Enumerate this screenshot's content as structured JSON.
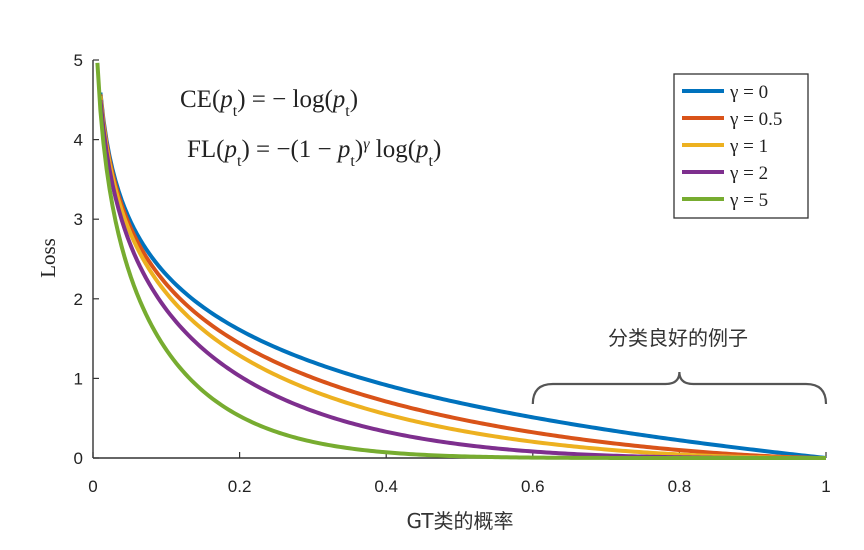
{
  "chart_data": {
    "type": "line",
    "xlabel": "GT类的概率",
    "ylabel": "Loss",
    "xlim": [
      0,
      1
    ],
    "ylim": [
      0,
      5
    ],
    "x_ticks": [
      "0",
      "0.2",
      "0.4",
      "0.6",
      "0.8",
      "1"
    ],
    "y_ticks": [
      "0",
      "1",
      "2",
      "3",
      "4",
      "5"
    ],
    "grid": false,
    "legend_position": "top-right",
    "formulas": {
      "ce": "CE(pt) = − log(pt)",
      "fl": "FL(pt) = −(1 − pt)γ log(pt)"
    },
    "annotation": {
      "text": "分类良好的例子",
      "x_range": [
        0.6,
        1.0
      ]
    },
    "series": [
      {
        "name": "γ = 0",
        "gamma": 0,
        "color": "#0072BD",
        "x": [
          0.01,
          0.05,
          0.1,
          0.2,
          0.3,
          0.4,
          0.5,
          0.6,
          0.7,
          0.8,
          0.9,
          1.0
        ],
        "values": [
          4.61,
          3.0,
          2.3,
          1.61,
          1.2,
          0.92,
          0.69,
          0.51,
          0.36,
          0.22,
          0.11,
          0.0
        ]
      },
      {
        "name": "γ = 0.5",
        "gamma": 0.5,
        "color": "#D95319",
        "x": [
          0.01,
          0.05,
          0.1,
          0.2,
          0.3,
          0.4,
          0.5,
          0.6,
          0.7,
          0.8,
          0.9,
          1.0
        ],
        "values": [
          4.58,
          2.92,
          2.18,
          1.44,
          1.01,
          0.71,
          0.49,
          0.32,
          0.2,
          0.1,
          0.03,
          0.0
        ]
      },
      {
        "name": "γ = 1",
        "gamma": 1,
        "color": "#EDB120",
        "x": [
          0.01,
          0.05,
          0.1,
          0.2,
          0.3,
          0.4,
          0.5,
          0.6,
          0.7,
          0.8,
          0.9,
          1.0
        ],
        "values": [
          4.56,
          2.85,
          2.07,
          1.29,
          0.84,
          0.55,
          0.35,
          0.2,
          0.11,
          0.04,
          0.01,
          0.0
        ]
      },
      {
        "name": "γ = 2",
        "gamma": 2,
        "color": "#7E2F8E",
        "x": [
          0.01,
          0.05,
          0.1,
          0.2,
          0.3,
          0.4,
          0.5,
          0.6,
          0.7,
          0.8,
          0.9,
          1.0
        ],
        "values": [
          4.51,
          2.71,
          1.87,
          1.03,
          0.59,
          0.33,
          0.17,
          0.08,
          0.03,
          0.01,
          0.0,
          0.0
        ]
      },
      {
        "name": "γ = 5",
        "gamma": 5,
        "color": "#77AC30",
        "x": [
          0.01,
          0.05,
          0.1,
          0.2,
          0.3,
          0.4,
          0.5,
          0.6,
          0.7,
          0.8,
          0.9,
          1.0
        ],
        "values": [
          4.38,
          2.32,
          1.36,
          0.53,
          0.2,
          0.07,
          0.02,
          0.01,
          0.0,
          0.0,
          0.0,
          0.0
        ]
      }
    ]
  }
}
